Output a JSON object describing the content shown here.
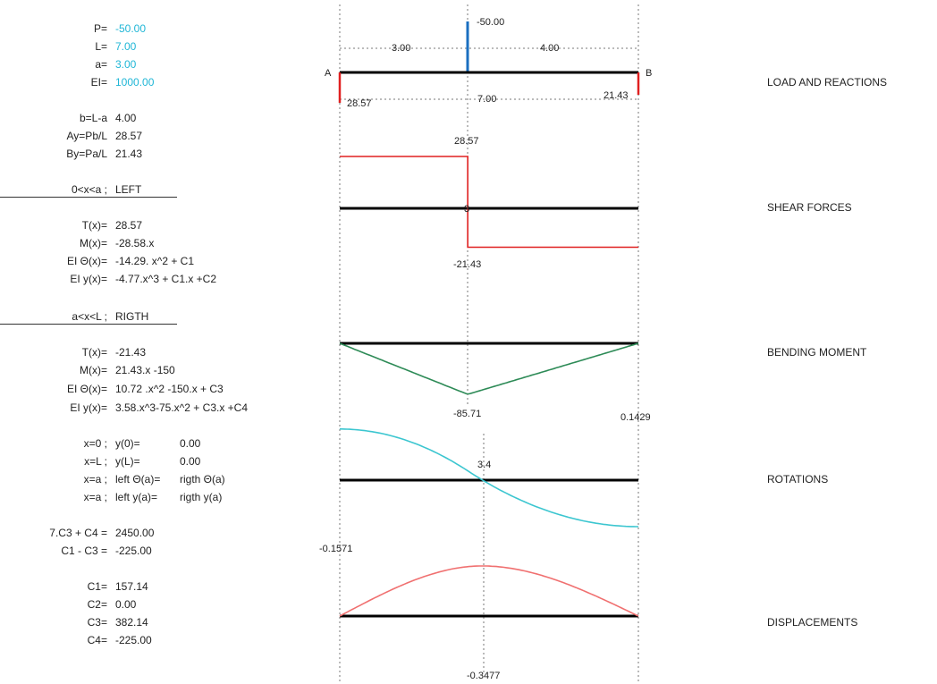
{
  "inputs": {
    "P": {
      "label": "P=",
      "value": "-50.00"
    },
    "L": {
      "label": "L=",
      "value": "7.00"
    },
    "a": {
      "label": "a=",
      "value": "3.00"
    },
    "EI": {
      "label": "EI=",
      "value": "1000.00"
    }
  },
  "derived": {
    "b": {
      "label": "b=L-a",
      "value": "4.00"
    },
    "Ay": {
      "label": "Ay=Pb/L",
      "value": "28.57"
    },
    "By": {
      "label": "By=Pa/L",
      "value": "21.43"
    }
  },
  "left": {
    "header_label": "0<x<a ;",
    "header_value": "LEFT",
    "T": {
      "label": "T(x)=",
      "value": "28.57"
    },
    "M": {
      "label": "M(x)=",
      "value": "-28.58.x"
    },
    "theta": {
      "label": "EI Θ(x)=",
      "value": "-14.29. x^2 + C1"
    },
    "y": {
      "label": "EI y(x)=",
      "value": "-4.77.x^3 + C1.x +C2"
    }
  },
  "right": {
    "header_label": "a<x<L ;",
    "header_value": "RIGTH",
    "T": {
      "label": "T(x)=",
      "value": "-21.43"
    },
    "M": {
      "label": "M(x)=",
      "value": "21.43.x -150"
    },
    "theta": {
      "label": "EI Θ(x)=",
      "value": "10.72 .x^2 -150.x + C3"
    },
    "y": {
      "label": "EI y(x)=",
      "value": "3.58.x^3-75.x^2 + C3.x +C4"
    }
  },
  "boundary": [
    {
      "label": "x=0 ;",
      "mid": "y(0)=",
      "value": "0.00"
    },
    {
      "label": "x=L ;",
      "mid": "y(L)=",
      "value": "0.00"
    },
    {
      "label": "x=a ;",
      "mid": "left Θ(a)=",
      "value": "rigth Θ(a)"
    },
    {
      "label": "x=a ;",
      "mid": "left y(a)=",
      "value": "rigth y(a)"
    }
  ],
  "system": [
    {
      "label": "7.C3 + C4 =",
      "value": "2450.00"
    },
    {
      "label": "C1 - C3 =",
      "value": "-225.00"
    }
  ],
  "constants": [
    {
      "label": "C1=",
      "value": "157.14"
    },
    {
      "label": "C2=",
      "value": "0.00"
    },
    {
      "label": "C3=",
      "value": "382.14"
    },
    {
      "label": "C4=",
      "value": "-225.00"
    }
  ],
  "titles": {
    "load": "LOAD AND REACTIONS",
    "shear": "SHEAR FORCES",
    "moment": "BENDING MOMENT",
    "rotation": "ROTATIONS",
    "displacement": "DISPLACEMENTS"
  },
  "diagram": {
    "L": 7,
    "a": 3,
    "support_a": "A",
    "support_b": "B",
    "load_label": "-50.00",
    "dim_a": "3.00",
    "dim_b": "4.00",
    "dim_L": "7.00",
    "reaction_a_label": "28.57",
    "reaction_b_label": "21.43",
    "shear_pos_label": "28.57",
    "shear_neg_label": "-21.43",
    "shear_zero_label": "3",
    "moment_min_label": "-85.71",
    "rot_max_label": "0.1429",
    "rot_min_label": "-0.1571",
    "rot_zero_label": "3.4",
    "disp_min_label": "-0.3477"
  },
  "chart_data": [
    {
      "type": "line",
      "title": "SHEAR FORCES",
      "x": [
        0,
        3,
        3,
        7
      ],
      "y": [
        28.57,
        28.57,
        -21.43,
        -21.43
      ]
    },
    {
      "type": "line",
      "title": "BENDING MOMENT",
      "x": [
        0,
        3,
        7
      ],
      "y": [
        0,
        -85.71,
        0
      ]
    },
    {
      "type": "line",
      "title": "ROTATIONS",
      "x": [
        0,
        3.4,
        7
      ],
      "y": [
        -0.1571,
        0,
        0.1429
      ]
    },
    {
      "type": "line",
      "title": "DISPLACEMENTS",
      "x": [
        0,
        3.4,
        7
      ],
      "y": [
        0,
        -0.3477,
        0
      ]
    }
  ],
  "colors": {
    "input_value": "#1fb6d6",
    "beam": "#000000",
    "load": "#1a6fc0",
    "reaction": "#e02020",
    "shear": "#e02020",
    "moment": "#2e8b57",
    "rotation": "#3cc6d0",
    "displacement": "#f07070"
  }
}
